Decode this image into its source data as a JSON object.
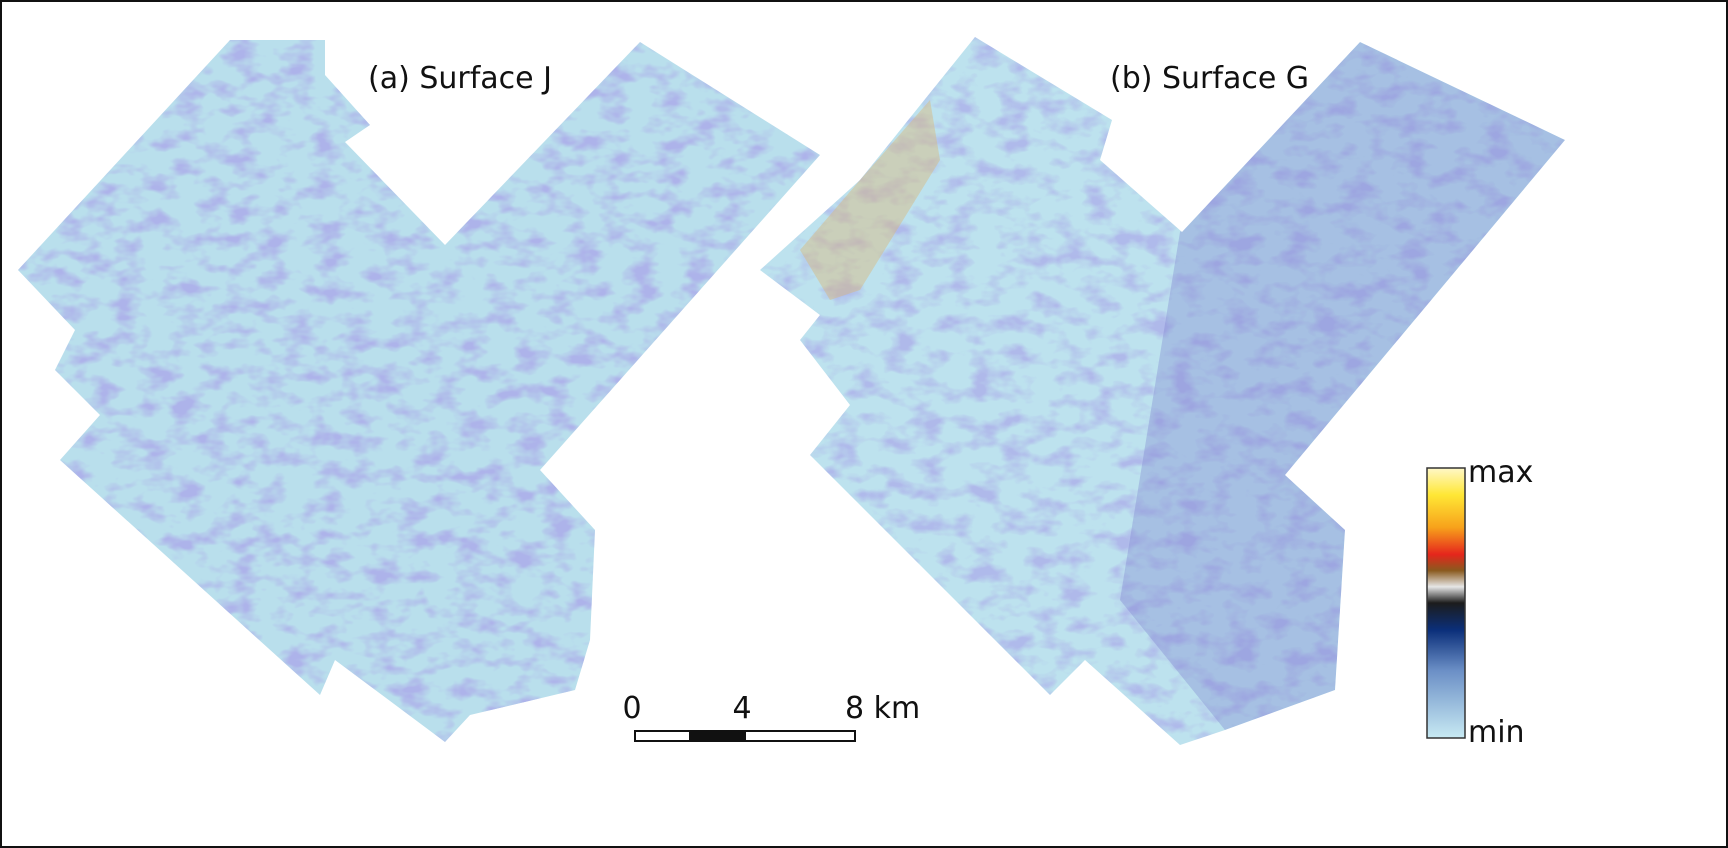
{
  "panels": [
    {
      "label": "(a) Surface J"
    },
    {
      "label": "(b) Surface G"
    }
  ],
  "scale_bar": {
    "ticks": [
      "0",
      "4",
      "8 km"
    ]
  },
  "colorbar": {
    "max_label": "max",
    "min_label": "min"
  }
}
